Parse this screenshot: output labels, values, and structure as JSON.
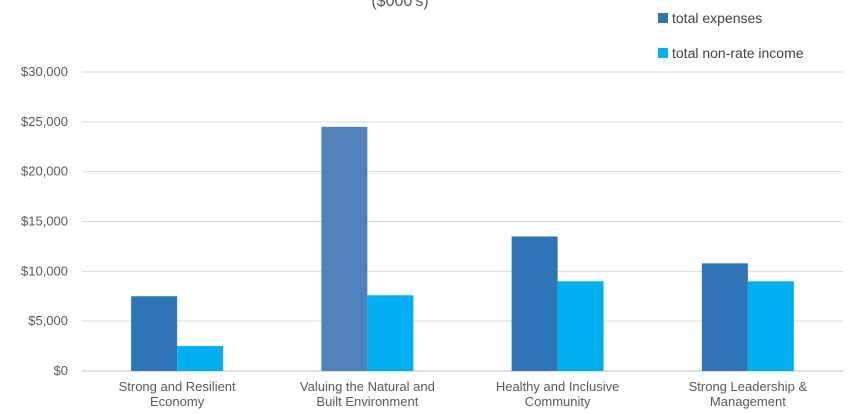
{
  "chart_data": {
    "type": "bar",
    "title": "($000's)",
    "categories": [
      [
        "Strong and Resilient",
        "Economy"
      ],
      [
        "Valuing the Natural and",
        "Built Environment"
      ],
      [
        "Healthy and Inclusive",
        "Community"
      ],
      [
        "Strong Leadership &",
        "Management"
      ]
    ],
    "series": [
      {
        "name": "total expenses",
        "color": "#2E75B6",
        "values": [
          7500,
          24500,
          13500,
          10800
        ]
      },
      {
        "name": "total non-rate income",
        "color": "#00B0F0",
        "values": [
          2500,
          7600,
          9000,
          9000
        ]
      }
    ],
    "highlight": {
      "series": 0,
      "category": 1,
      "color": "#4F81BD"
    },
    "ylim": [
      0,
      30000
    ],
    "yticks": [
      0,
      5000,
      10000,
      15000,
      20000,
      25000,
      30000
    ],
    "ytick_labels": [
      "$0",
      "$5,000",
      "$10,000",
      "$15,000",
      "$20,000",
      "$25,000",
      "$30,000"
    ],
    "xlabel": "",
    "ylabel": "",
    "grid": true,
    "legend_position": "top-right"
  }
}
